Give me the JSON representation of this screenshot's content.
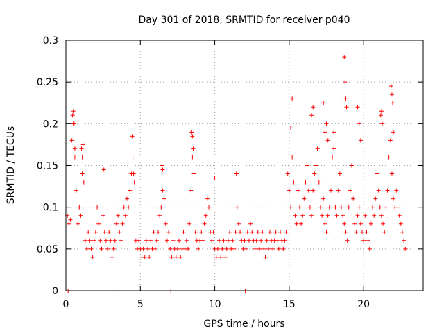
{
  "chart_data": {
    "type": "scatter",
    "title": "Day 301 of 2018, SRMTID for receiver p040",
    "xlabel": "GPS time / hours",
    "ylabel": "SRMTID / TECUs",
    "xlim": [
      0,
      24
    ],
    "ylim": [
      0,
      0.3
    ],
    "xticks": [
      0,
      5,
      10,
      15,
      20
    ],
    "xtick_labels": [
      "0",
      "5",
      "10",
      "15",
      "20"
    ],
    "yticks": [
      0,
      0.05,
      0.1,
      0.15,
      0.2,
      0.25,
      0.3
    ],
    "ytick_labels": [
      "0",
      "0.05",
      "0.1",
      "0.15",
      "0.2",
      "0.25",
      "0.3"
    ],
    "grid": true,
    "marker": "+",
    "series_color": "#ff0000",
    "series": [
      {
        "name": "SRMTID",
        "x": [
          0.1,
          0.2,
          0.3,
          0.4,
          0.5,
          0.6,
          0.7,
          0.8,
          0.9,
          1.0,
          1.1,
          1.2,
          1.3,
          1.4,
          1.5,
          1.6,
          1.7,
          1.8,
          1.9,
          2.0,
          2.1,
          2.2,
          2.3,
          2.4,
          2.5,
          2.6,
          2.7,
          2.8,
          2.9,
          3.0,
          3.1,
          3.2,
          3.3,
          3.4,
          3.5,
          3.6,
          3.7,
          3.8,
          3.9,
          4.0,
          4.1,
          4.2,
          4.3,
          4.4,
          4.5,
          4.6,
          4.7,
          4.8,
          4.9,
          5.0,
          5.1,
          5.2,
          5.3,
          5.4,
          5.5,
          5.6,
          5.7,
          5.8,
          5.9,
          6.0,
          6.1,
          6.2,
          6.3,
          6.4,
          6.5,
          6.6,
          6.7,
          6.8,
          6.9,
          7.0,
          7.1,
          7.2,
          7.3,
          7.4,
          7.5,
          7.6,
          7.7,
          7.8,
          7.9,
          8.0,
          8.1,
          8.2,
          8.3,
          8.4,
          8.5,
          8.6,
          8.7,
          8.8,
          8.9,
          9.0,
          9.1,
          9.2,
          9.3,
          9.4,
          9.5,
          9.6,
          9.7,
          9.8,
          9.9,
          10.0,
          10.1,
          10.2,
          10.3,
          10.4,
          10.5,
          10.6,
          10.7,
          10.8,
          10.9,
          11.0,
          11.1,
          11.2,
          11.3,
          11.4,
          11.5,
          11.6,
          11.7,
          11.8,
          11.9,
          12.0,
          12.1,
          12.2,
          12.3,
          12.4,
          12.5,
          12.6,
          12.7,
          12.8,
          12.9,
          13.0,
          13.1,
          13.2,
          13.3,
          13.4,
          13.5,
          13.6,
          13.7,
          13.8,
          13.9,
          14.0,
          14.1,
          14.2,
          14.3,
          14.4,
          14.5,
          14.6,
          14.7,
          14.8,
          14.9,
          15.0,
          15.1,
          15.2,
          15.3,
          15.4,
          15.5,
          15.6,
          15.7,
          15.8,
          15.9,
          16.0,
          16.1,
          16.2,
          16.3,
          16.4,
          16.5,
          16.6,
          16.7,
          16.8,
          16.9,
          17.0,
          17.1,
          17.2,
          17.3,
          17.4,
          17.5,
          17.6,
          17.7,
          17.8,
          17.9,
          18.0,
          18.1,
          18.2,
          18.3,
          18.4,
          18.5,
          18.6,
          18.7,
          18.8,
          18.9,
          19.0,
          19.1,
          19.2,
          19.3,
          19.4,
          19.5,
          19.6,
          19.7,
          19.8,
          19.9,
          20.0,
          20.1,
          20.2,
          20.3,
          20.4,
          20.5,
          20.6,
          20.7,
          20.8,
          20.9,
          21.0,
          21.1,
          21.2,
          21.3,
          21.4,
          21.5,
          21.6,
          21.7,
          21.8,
          21.9,
          22.0,
          22.1,
          22.2,
          22.3,
          22.4,
          22.5,
          22.6,
          22.7,
          22.8,
          0.45,
          0.5,
          0.55,
          0.6,
          1.05,
          1.1,
          1.15,
          2.55,
          4.45,
          4.5,
          4.55,
          6.45,
          6.5,
          8.45,
          8.5,
          8.55,
          10.0,
          11.45,
          15.1,
          15.2,
          16.5,
          16.6,
          17.3,
          17.4,
          17.5,
          17.6,
          18.0,
          18.7,
          18.75,
          18.8,
          18.85,
          19.6,
          19.7,
          19.8,
          21.15,
          21.2,
          21.25,
          21.85,
          21.9,
          21.95,
          22.0,
          0.15,
          3.1,
          7.05,
          12.05
        ],
        "y": [
          0.09,
          0.08,
          0.085,
          0.18,
          0.2,
          0.16,
          0.12,
          0.08,
          0.1,
          0.09,
          0.14,
          0.13,
          0.06,
          0.05,
          0.07,
          0.06,
          0.05,
          0.04,
          0.06,
          0.07,
          0.1,
          0.08,
          0.06,
          0.05,
          0.09,
          0.07,
          0.06,
          0.05,
          0.07,
          0.06,
          0.04,
          0.05,
          0.06,
          0.08,
          0.09,
          0.07,
          0.06,
          0.08,
          0.1,
          0.09,
          0.11,
          0.1,
          0.12,
          0.14,
          0.16,
          0.13,
          0.06,
          0.05,
          0.06,
          0.05,
          0.04,
          0.05,
          0.04,
          0.06,
          0.05,
          0.04,
          0.06,
          0.05,
          0.07,
          0.05,
          0.06,
          0.07,
          0.09,
          0.1,
          0.12,
          0.11,
          0.08,
          0.06,
          0.07,
          0.05,
          0.04,
          0.06,
          0.05,
          0.04,
          0.05,
          0.06,
          0.04,
          0.05,
          0.07,
          0.05,
          0.06,
          0.05,
          0.08,
          0.12,
          0.16,
          0.14,
          0.07,
          0.06,
          0.05,
          0.06,
          0.07,
          0.06,
          0.08,
          0.09,
          0.11,
          0.1,
          0.07,
          0.06,
          0.07,
          0.05,
          0.04,
          0.05,
          0.06,
          0.04,
          0.05,
          0.06,
          0.04,
          0.05,
          0.06,
          0.07,
          0.05,
          0.06,
          0.05,
          0.07,
          0.1,
          0.08,
          0.07,
          0.06,
          0.05,
          0.06,
          0.05,
          0.07,
          0.06,
          0.08,
          0.07,
          0.06,
          0.05,
          0.06,
          0.07,
          0.05,
          0.06,
          0.07,
          0.05,
          0.04,
          0.06,
          0.05,
          0.07,
          0.06,
          0.05,
          0.06,
          0.07,
          0.06,
          0.05,
          0.07,
          0.06,
          0.05,
          0.06,
          0.07,
          0.14,
          0.12,
          0.1,
          0.16,
          0.13,
          0.09,
          0.08,
          0.12,
          0.1,
          0.08,
          0.09,
          0.11,
          0.13,
          0.15,
          0.12,
          0.1,
          0.09,
          0.12,
          0.14,
          0.15,
          0.17,
          0.13,
          0.1,
          0.09,
          0.11,
          0.08,
          0.07,
          0.09,
          0.1,
          0.12,
          0.16,
          0.17,
          0.1,
          0.09,
          0.12,
          0.14,
          0.1,
          0.09,
          0.08,
          0.07,
          0.06,
          0.1,
          0.12,
          0.15,
          0.11,
          0.08,
          0.07,
          0.09,
          0.1,
          0.08,
          0.07,
          0.06,
          0.09,
          0.07,
          0.06,
          0.05,
          0.08,
          0.1,
          0.09,
          0.11,
          0.14,
          0.12,
          0.1,
          0.09,
          0.08,
          0.07,
          0.1,
          0.12,
          0.16,
          0.18,
          0.14,
          0.11,
          0.1,
          0.12,
          0.1,
          0.09,
          0.08,
          0.07,
          0.06,
          0.05,
          0.21,
          0.215,
          0.2,
          0.17,
          0.17,
          0.16,
          0.175,
          0.145,
          0.185,
          0.16,
          0.14,
          0.15,
          0.145,
          0.19,
          0.185,
          0.17,
          0.135,
          0.14,
          0.195,
          0.23,
          0.21,
          0.22,
          0.225,
          0.19,
          0.2,
          0.18,
          0.19,
          0.28,
          0.25,
          0.23,
          0.22,
          0.22,
          0.2,
          0.18,
          0.21,
          0.215,
          0.2,
          0.245,
          0.235,
          0.225,
          0.19,
          0.0,
          0.0,
          0.0,
          0.0
        ]
      }
    ]
  }
}
